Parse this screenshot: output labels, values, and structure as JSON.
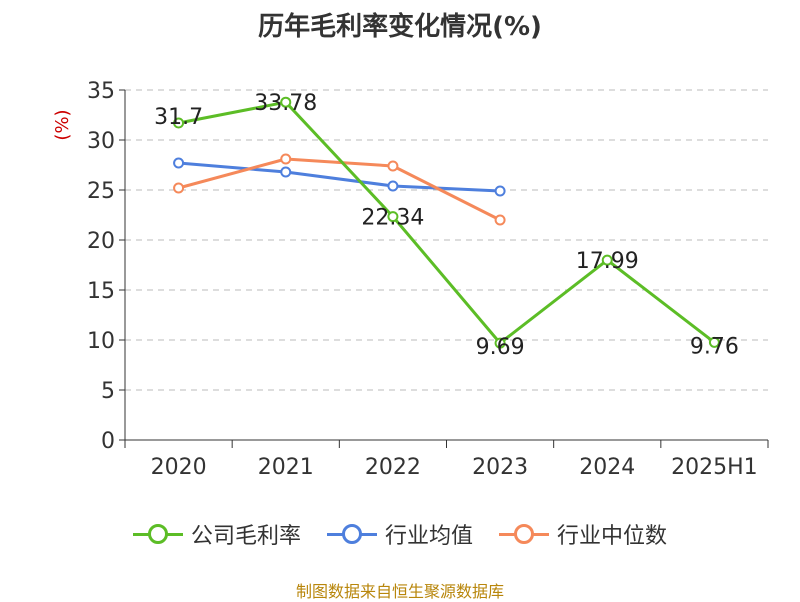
{
  "chart_data": {
    "type": "line",
    "title": "历年毛利率变化情况(%)",
    "ylabel": "(%)",
    "xlabel": "",
    "categories": [
      "2020",
      "2021",
      "2022",
      "2023",
      "2024",
      "2025H1"
    ],
    "ylim": [
      0,
      35
    ],
    "yticks": [
      0,
      5,
      10,
      15,
      20,
      25,
      30,
      35
    ],
    "grid": true,
    "legend_position": "bottom",
    "series": [
      {
        "name": "公司毛利率",
        "color": "#5cbd26",
        "values": [
          31.7,
          33.78,
          22.34,
          9.69,
          17.99,
          9.76
        ],
        "labels": [
          "31.7",
          "33.78",
          "22.34",
          "9.69",
          "17.99",
          "9.76"
        ]
      },
      {
        "name": "行业均值",
        "color": "#4e7fdd",
        "values": [
          27.7,
          26.8,
          25.4,
          24.9,
          null,
          null
        ]
      },
      {
        "name": "行业中位数",
        "color": "#f5895a",
        "values": [
          25.2,
          28.1,
          27.4,
          22.0,
          null,
          null
        ]
      }
    ]
  },
  "source": "制图数据来自恒生聚源数据库",
  "colors": {
    "ylabel": "#cc0000",
    "axis": "#333333",
    "grid": "#bbbbbb"
  }
}
